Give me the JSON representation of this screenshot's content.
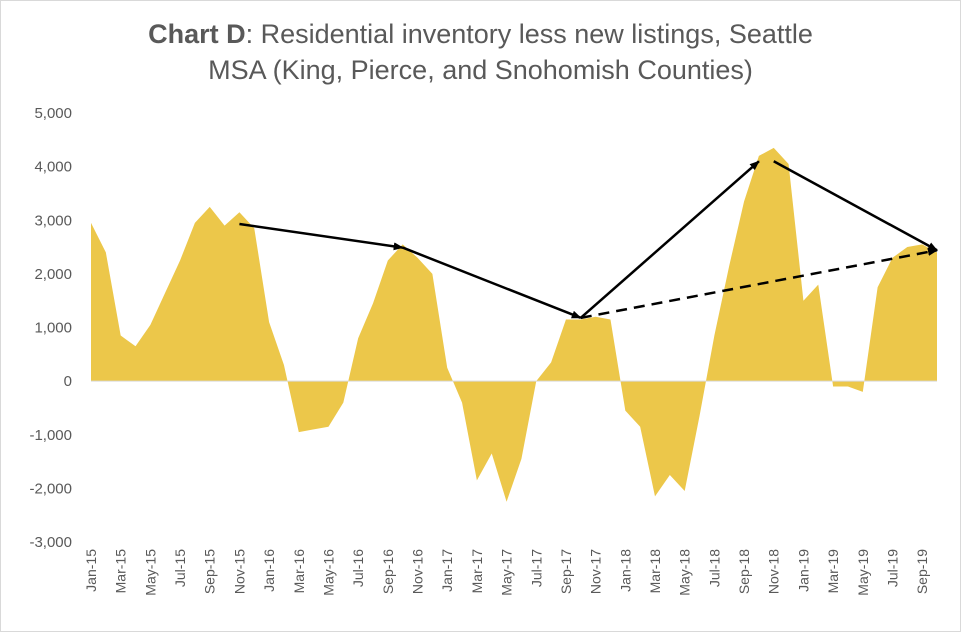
{
  "chart_data": {
    "type": "area",
    "title_lead": "Chart D",
    "title_rest_line1": ": Residential inventory less new listings, Seattle",
    "title_line2": "MSA (King, Pierce, and Snohomish Counties)",
    "xlabel": "",
    "ylabel": "",
    "ylim": [
      -3000,
      5000
    ],
    "yticks": [
      5000,
      4000,
      3000,
      2000,
      1000,
      0,
      -1000,
      -2000,
      -3000
    ],
    "ytick_labels": [
      "5,000",
      "4,000",
      "3,000",
      "2,000",
      "1,000",
      "0",
      "-1,000",
      "-2,000",
      "-3,000"
    ],
    "x": [
      "Jan-15",
      "Feb-15",
      "Mar-15",
      "Apr-15",
      "May-15",
      "Jun-15",
      "Jul-15",
      "Aug-15",
      "Sep-15",
      "Oct-15",
      "Nov-15",
      "Dec-15",
      "Jan-16",
      "Feb-16",
      "Mar-16",
      "Apr-16",
      "May-16",
      "Jun-16",
      "Jul-16",
      "Aug-16",
      "Sep-16",
      "Oct-16",
      "Nov-16",
      "Dec-16",
      "Jan-17",
      "Feb-17",
      "Mar-17",
      "Apr-17",
      "May-17",
      "Jun-17",
      "Jul-17",
      "Aug-17",
      "Sep-17",
      "Oct-17",
      "Nov-17",
      "Dec-17",
      "Jan-18",
      "Feb-18",
      "Mar-18",
      "Apr-18",
      "May-18",
      "Jun-18",
      "Jul-18",
      "Aug-18",
      "Sep-18",
      "Oct-18",
      "Nov-18",
      "Dec-18",
      "Jan-19",
      "Feb-19",
      "Mar-19",
      "Apr-19",
      "May-19",
      "Jun-19",
      "Jul-19",
      "Aug-19",
      "Sep-19",
      "Oct-19"
    ],
    "xtick_labels": [
      "Jan-15",
      "Mar-15",
      "May-15",
      "Jul-15",
      "Sep-15",
      "Nov-15",
      "Jan-16",
      "Mar-16",
      "May-16",
      "Jul-16",
      "Sep-16",
      "Nov-16",
      "Jan-17",
      "Mar-17",
      "May-17",
      "Jul-17",
      "Sep-17",
      "Nov-17",
      "Jan-18",
      "Mar-18",
      "May-18",
      "Jul-18",
      "Sep-18",
      "Nov-18",
      "Jan-19",
      "Mar-19",
      "May-19",
      "Jul-19",
      "Sep-19"
    ],
    "series": [
      {
        "values": [
          2950,
          2400,
          850,
          650,
          1050,
          1650,
          2250,
          2950,
          3250,
          2900,
          3150,
          2850,
          1100,
          300,
          -950,
          -900,
          -850,
          -400,
          800,
          1450,
          2250,
          2550,
          2300,
          2000,
          250,
          -400,
          -1850,
          -1350,
          -2250,
          -1450,
          0,
          350,
          1150,
          1150,
          1200,
          1150,
          -550,
          -850,
          -2150,
          -1750,
          -2050,
          -650,
          850,
          2150,
          3350,
          4200,
          4350,
          4050,
          1500,
          1800,
          -100,
          -100,
          -200,
          1750,
          2300,
          2500,
          2550,
          2400
        ]
      }
    ],
    "fill_color": "#ecc74a",
    "arrows": [
      {
        "style": "solid",
        "from": [
          "Nov-15",
          2930
        ],
        "to": [
          "Oct-16",
          2490
        ]
      },
      {
        "style": "solid",
        "from": [
          "Oct-16",
          2490
        ],
        "to": [
          "Oct-17",
          1180
        ]
      },
      {
        "style": "solid",
        "from": [
          "Oct-17",
          1180
        ],
        "to": [
          "Oct-18",
          4100
        ]
      },
      {
        "style": "solid",
        "from": [
          "Nov-18",
          4100
        ],
        "to": [
          "Oct-19",
          2440
        ]
      },
      {
        "style": "dashed",
        "from": [
          "Oct-17",
          1180
        ],
        "to": [
          "Oct-19",
          2440
        ]
      }
    ],
    "grid": false,
    "legend": "none"
  }
}
